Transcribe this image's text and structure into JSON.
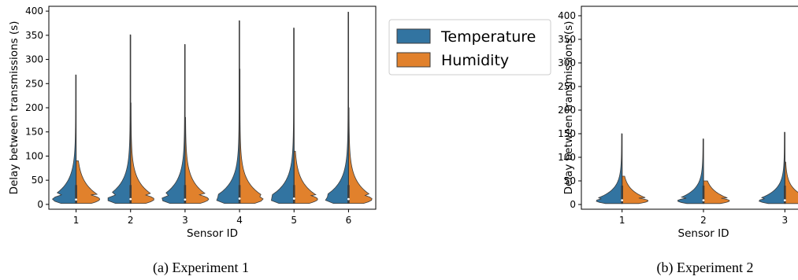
{
  "colors": {
    "temperature": "#3274a1",
    "humidity": "#e1812c"
  },
  "legend": {
    "temperature": "Temperature",
    "humidity": "Humidity"
  },
  "chart_data": [
    {
      "type": "violin",
      "caption": "(a) Experiment 1",
      "xlabel": "Sensor ID",
      "ylabel": "Delay between transmissions (s)",
      "ylim": [
        -10,
        410
      ],
      "yticks": [
        0,
        50,
        100,
        150,
        200,
        250,
        300,
        350,
        400
      ],
      "categories": [
        "1",
        "2",
        "3",
        "4",
        "5",
        "6"
      ],
      "series": [
        {
          "name": "Temperature",
          "side": "left",
          "max": [
            268,
            351,
            331,
            380,
            365,
            398
          ],
          "median": [
            10,
            11,
            10,
            12,
            12,
            11
          ]
        },
        {
          "name": "Humidity",
          "side": "right",
          "max": [
            90,
            210,
            180,
            280,
            110,
            200
          ],
          "median": [
            11,
            12,
            11,
            13,
            13,
            12
          ]
        }
      ]
    },
    {
      "type": "violin",
      "caption": "(b) Experiment 2",
      "xlabel": "Sensor ID",
      "ylabel": "Delay between transmissions (s)",
      "ylim": [
        -10,
        420
      ],
      "yticks": [
        0,
        50,
        100,
        150,
        200,
        250,
        300,
        350,
        400
      ],
      "categories": [
        "1",
        "2",
        "3"
      ],
      "series": [
        {
          "name": "Temperature",
          "side": "left",
          "max": [
            150,
            139,
            153
          ],
          "median": [
            9,
            9,
            9
          ]
        },
        {
          "name": "Humidity",
          "side": "right",
          "max": [
            60,
            50,
            90
          ],
          "median": [
            9,
            9,
            9
          ]
        }
      ]
    }
  ]
}
